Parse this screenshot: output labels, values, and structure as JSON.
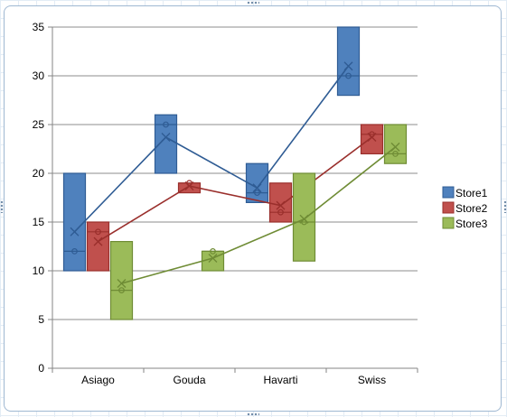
{
  "chart_data": {
    "type": "box",
    "categories": [
      "Asiago",
      "Gouda",
      "Havarti",
      "Swiss"
    ],
    "ylim": [
      0,
      35
    ],
    "yticks": [
      0,
      5,
      10,
      15,
      20,
      25,
      30,
      35
    ],
    "grid": true,
    "legend_position": "right",
    "series": [
      {
        "name": "Store1",
        "color": "#4f81bd",
        "stroke": "#2f5c94",
        "boxes": [
          {
            "low": 10,
            "high": 20,
            "median": 12,
            "mean": 14
          },
          {
            "low": 20,
            "high": 26,
            "median": 25,
            "mean": 23.7
          },
          {
            "low": 17,
            "high": 21,
            "median": 18,
            "mean": 18.5
          },
          {
            "low": 28,
            "high": 35,
            "median": 30,
            "mean": 31
          }
        ]
      },
      {
        "name": "Store2",
        "color": "#c0504d",
        "stroke": "#9a2f2c",
        "boxes": [
          {
            "low": 10,
            "high": 15,
            "median": 14,
            "mean": 13
          },
          {
            "low": 18,
            "high": 19,
            "median": 19,
            "mean": 18.7
          },
          {
            "low": 15,
            "high": 19,
            "median": 16,
            "mean": 16.7
          },
          {
            "low": 22,
            "high": 25,
            "median": 24,
            "mean": 23.7
          }
        ]
      },
      {
        "name": "Store3",
        "color": "#9bbb59",
        "stroke": "#6f8c35",
        "boxes": [
          {
            "low": 5,
            "high": 13,
            "median": 8,
            "mean": 8.7
          },
          {
            "low": 10,
            "high": 12,
            "median": 12,
            "mean": 11.3
          },
          {
            "low": 11,
            "high": 20,
            "median": 15,
            "mean": 15.3
          },
          {
            "low": 21,
            "high": 25,
            "median": 22,
            "mean": 22.7
          }
        ]
      }
    ]
  }
}
